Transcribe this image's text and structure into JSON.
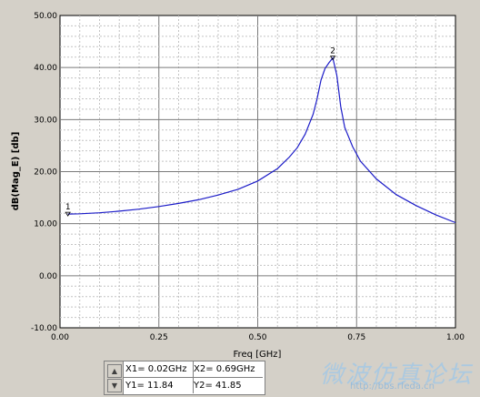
{
  "chart_data": {
    "type": "line",
    "xlabel": "Freq [GHz]",
    "ylabel": "dB(Mag_E) [db]",
    "xlim": [
      0.0,
      1.0
    ],
    "ylim": [
      -10.0,
      50.0
    ],
    "x_ticks": [
      "0.00",
      "0.25",
      "0.50",
      "0.75",
      "1.00"
    ],
    "y_ticks": [
      "-10.00",
      "0.00",
      "10.00",
      "20.00",
      "30.00",
      "40.00",
      "50.00"
    ],
    "grid": true,
    "series": [
      {
        "color": "#1c1cc8",
        "x": [
          0.02,
          0.05,
          0.1,
          0.15,
          0.2,
          0.25,
          0.3,
          0.35,
          0.4,
          0.45,
          0.5,
          0.55,
          0.58,
          0.6,
          0.62,
          0.64,
          0.65,
          0.66,
          0.67,
          0.68,
          0.69,
          0.7,
          0.71,
          0.72,
          0.74,
          0.76,
          0.8,
          0.85,
          0.9,
          0.95,
          1.0
        ],
        "y": [
          11.84,
          11.9,
          12.1,
          12.4,
          12.8,
          13.3,
          13.9,
          14.6,
          15.5,
          16.6,
          18.2,
          20.6,
          22.8,
          24.6,
          27.2,
          31.0,
          34.0,
          37.6,
          39.8,
          40.9,
          41.85,
          38.5,
          32.5,
          28.5,
          24.8,
          22.0,
          18.6,
          15.6,
          13.5,
          11.7,
          10.2
        ]
      }
    ],
    "markers": [
      {
        "label": "1",
        "x": 0.02,
        "y": 11.84
      },
      {
        "label": "2",
        "x": 0.69,
        "y": 41.85
      }
    ]
  },
  "marker_table": {
    "x1": "X1= 0.02GHz",
    "y1": "Y1= 11.84",
    "x2": "X2= 0.69GHz",
    "y2": "Y2= 41.85"
  },
  "watermark": {
    "text": "微波仿真论坛",
    "url": "http://bbs.rfeda.cn"
  },
  "colors": {
    "background": "#d4d0c8",
    "plot_background": "#ffffff",
    "grid": "#a0a0a0",
    "trace": "#1c1cc8"
  }
}
